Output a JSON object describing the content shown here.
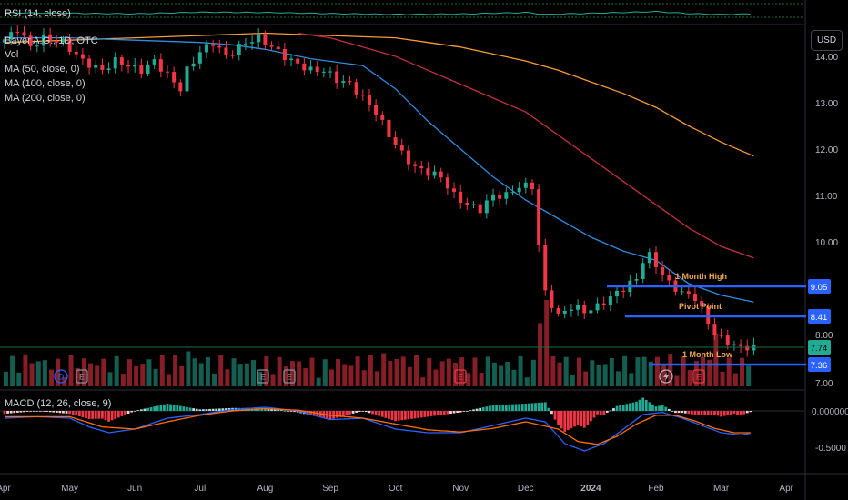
{
  "chart_data": {
    "type": "candlestick",
    "symbol_line": "Bayer A.G., 1D, OTC",
    "volume_label": "Vol",
    "indicators": {
      "rsi_label": "RSI (14, close)",
      "ma50_label": "MA (50, close, 0)",
      "ma100_label": "MA (100, close, 0)",
      "ma200_label": "MA (200, close, 0)",
      "macd_label": "MACD (12, 26, close, 9)"
    },
    "currency": "USD",
    "y_axis_ticks": [
      "14.00",
      "13.00",
      "12.00",
      "11.00",
      "10.00",
      "8.00",
      "7.00"
    ],
    "y_axis_values": [
      14,
      13,
      12,
      11,
      10,
      8,
      7
    ],
    "macd_axis_ticks": [
      "0.000000",
      "-0.5000"
    ],
    "x_axis_labels": [
      "Apr",
      "May",
      "Jun",
      "Jul",
      "Aug",
      "Sep",
      "Oct",
      "Nov",
      "Dec",
      "2024",
      "Feb",
      "Mar",
      "Apr"
    ],
    "levels": [
      {
        "name": "1 Month High",
        "value": "9.05",
        "color": "#2962ff",
        "label_color": "#f0a850"
      },
      {
        "name": "Pivot Point",
        "value": "8.41",
        "color": "#2962ff",
        "label_color": "#f0a850"
      },
      {
        "name": "1 Month Low",
        "value": "7.36",
        "color": "#2962ff",
        "label_color": "#f0a850"
      }
    ],
    "last_price": "7.74",
    "last_price_color": "#22ab94",
    "event_markers": [
      "D",
      "E",
      "E",
      "E",
      "E",
      "E"
    ],
    "colors": {
      "up": "#22ab94",
      "down": "#f23645",
      "ma50": "#2f8ce0",
      "ma100": "#c2313b",
      "ma200": "#f59b3a",
      "macd": "#2962ff",
      "signal": "#ff6d00"
    },
    "price_path": [
      [
        0.0,
        14.3
      ],
      [
        0.15,
        14.4
      ],
      [
        0.3,
        14.6
      ],
      [
        0.5,
        14.2
      ],
      [
        0.7,
        14.4
      ],
      [
        1.0,
        14.3
      ],
      [
        1.3,
        13.9
      ],
      [
        1.6,
        13.7
      ],
      [
        1.8,
        13.9
      ],
      [
        2.0,
        13.8
      ],
      [
        2.2,
        13.7
      ],
      [
        2.4,
        13.9
      ],
      [
        2.6,
        13.6
      ],
      [
        2.8,
        13.3
      ],
      [
        2.9,
        13.7
      ],
      [
        3.1,
        14.1
      ],
      [
        3.3,
        14.3
      ],
      [
        3.5,
        14.0
      ],
      [
        3.7,
        14.2
      ],
      [
        3.8,
        14.3
      ],
      [
        4.0,
        14.4
      ],
      [
        4.3,
        14.1
      ],
      [
        4.5,
        13.9
      ],
      [
        4.8,
        13.7
      ],
      [
        5.0,
        13.7
      ],
      [
        5.2,
        13.5
      ],
      [
        5.4,
        13.4
      ],
      [
        5.6,
        13.1
      ],
      [
        5.8,
        12.8
      ],
      [
        6.0,
        12.3
      ],
      [
        6.2,
        11.9
      ],
      [
        6.4,
        11.6
      ],
      [
        6.6,
        11.5
      ],
      [
        6.8,
        11.4
      ],
      [
        7.0,
        11.0
      ],
      [
        7.2,
        10.8
      ],
      [
        7.4,
        10.7
      ],
      [
        7.6,
        11.0
      ],
      [
        7.8,
        11.0
      ],
      [
        8.0,
        11.2
      ],
      [
        8.25,
        11.2
      ],
      [
        8.32,
        9.4
      ],
      [
        8.4,
        8.9
      ],
      [
        8.6,
        8.4
      ],
      [
        8.8,
        8.6
      ],
      [
        9.0,
        8.5
      ],
      [
        9.2,
        8.6
      ],
      [
        9.4,
        8.8
      ],
      [
        9.6,
        9.0
      ],
      [
        9.8,
        9.2
      ],
      [
        9.9,
        9.6
      ],
      [
        10.0,
        9.7
      ],
      [
        10.1,
        9.5
      ],
      [
        10.3,
        9.1
      ],
      [
        10.5,
        8.9
      ],
      [
        10.7,
        8.8
      ],
      [
        10.85,
        8.4
      ],
      [
        10.95,
        8.1
      ],
      [
        11.1,
        7.9
      ],
      [
        11.3,
        7.8
      ],
      [
        11.4,
        7.7
      ],
      [
        11.5,
        7.75
      ]
    ],
    "ma50_path": [
      [
        0.0,
        14.4
      ],
      [
        1.0,
        14.4
      ],
      [
        2.0,
        14.35
      ],
      [
        3.0,
        14.3
      ],
      [
        3.5,
        14.25
      ],
      [
        4.0,
        14.15
      ],
      [
        4.7,
        13.95
      ],
      [
        5.5,
        13.8
      ],
      [
        6.0,
        13.3
      ],
      [
        6.5,
        12.6
      ],
      [
        7.0,
        12.0
      ],
      [
        7.5,
        11.4
      ],
      [
        8.0,
        10.9
      ],
      [
        8.5,
        10.5
      ],
      [
        9.0,
        10.1
      ],
      [
        9.5,
        9.8
      ],
      [
        10.0,
        9.6
      ],
      [
        10.5,
        9.1
      ],
      [
        11.0,
        8.85
      ],
      [
        11.5,
        8.7
      ]
    ],
    "ma100_path": [
      [
        4.5,
        14.5
      ],
      [
        5.0,
        14.4
      ],
      [
        5.5,
        14.2
      ],
      [
        6.0,
        14.0
      ],
      [
        6.5,
        13.7
      ],
      [
        7.0,
        13.4
      ],
      [
        7.5,
        13.1
      ],
      [
        8.0,
        12.8
      ],
      [
        8.5,
        12.3
      ],
      [
        9.0,
        11.8
      ],
      [
        9.5,
        11.3
      ],
      [
        10.0,
        10.8
      ],
      [
        10.5,
        10.3
      ],
      [
        11.0,
        9.9
      ],
      [
        11.5,
        9.65
      ]
    ],
    "ma200_path": [
      [
        0.0,
        14.3
      ],
      [
        1.0,
        14.35
      ],
      [
        2.0,
        14.4
      ],
      [
        3.0,
        14.45
      ],
      [
        4.0,
        14.5
      ],
      [
        5.0,
        14.45
      ],
      [
        6.0,
        14.4
      ],
      [
        6.5,
        14.3
      ],
      [
        7.0,
        14.2
      ],
      [
        7.5,
        14.05
      ],
      [
        8.0,
        13.9
      ],
      [
        8.5,
        13.7
      ],
      [
        9.0,
        13.45
      ],
      [
        9.5,
        13.2
      ],
      [
        10.0,
        12.9
      ],
      [
        10.5,
        12.5
      ],
      [
        11.0,
        12.15
      ],
      [
        11.5,
        11.85
      ]
    ],
    "macd_path": [
      [
        0.0,
        -0.1
      ],
      [
        0.5,
        -0.08
      ],
      [
        1.0,
        -0.1
      ],
      [
        1.3,
        -0.22
      ],
      [
        1.6,
        -0.3
      ],
      [
        2.0,
        -0.25
      ],
      [
        2.5,
        -0.1
      ],
      [
        3.0,
        -0.05
      ],
      [
        3.5,
        0.02
      ],
      [
        4.0,
        0.05
      ],
      [
        4.5,
        0.0
      ],
      [
        5.0,
        -0.12
      ],
      [
        5.5,
        -0.1
      ],
      [
        6.0,
        -0.25
      ],
      [
        6.5,
        -0.3
      ],
      [
        7.0,
        -0.3
      ],
      [
        7.5,
        -0.2
      ],
      [
        8.0,
        -0.1
      ],
      [
        8.3,
        -0.15
      ],
      [
        8.6,
        -0.45
      ],
      [
        8.9,
        -0.55
      ],
      [
        9.2,
        -0.45
      ],
      [
        9.5,
        -0.25
      ],
      [
        9.8,
        -0.05
      ],
      [
        10.1,
        -0.02
      ],
      [
        10.4,
        -0.1
      ],
      [
        10.7,
        -0.2
      ],
      [
        11.0,
        -0.3
      ],
      [
        11.3,
        -0.33
      ],
      [
        11.5,
        -0.3
      ]
    ],
    "signal_path": [
      [
        0.0,
        -0.08
      ],
      [
        0.5,
        -0.08
      ],
      [
        1.0,
        -0.08
      ],
      [
        1.5,
        -0.22
      ],
      [
        2.0,
        -0.25
      ],
      [
        2.5,
        -0.15
      ],
      [
        3.0,
        -0.06
      ],
      [
        3.5,
        0.0
      ],
      [
        4.0,
        0.03
      ],
      [
        4.5,
        0.01
      ],
      [
        5.0,
        -0.06
      ],
      [
        5.5,
        -0.1
      ],
      [
        6.0,
        -0.18
      ],
      [
        6.5,
        -0.26
      ],
      [
        7.0,
        -0.29
      ],
      [
        7.5,
        -0.24
      ],
      [
        8.0,
        -0.15
      ],
      [
        8.5,
        -0.25
      ],
      [
        8.8,
        -0.42
      ],
      [
        9.1,
        -0.46
      ],
      [
        9.4,
        -0.35
      ],
      [
        9.7,
        -0.18
      ],
      [
        10.0,
        -0.06
      ],
      [
        10.3,
        -0.06
      ],
      [
        10.6,
        -0.14
      ],
      [
        10.9,
        -0.24
      ],
      [
        11.2,
        -0.3
      ],
      [
        11.5,
        -0.3
      ]
    ],
    "rsi_path": [
      [
        0.0,
        50
      ],
      [
        1.0,
        45
      ],
      [
        2.0,
        40
      ],
      [
        3.0,
        55
      ],
      [
        4.0,
        52
      ],
      [
        5.0,
        42
      ],
      [
        6.0,
        35
      ],
      [
        7.0,
        38
      ],
      [
        8.0,
        52
      ],
      [
        8.3,
        35
      ],
      [
        9.0,
        45
      ],
      [
        10.0,
        60
      ],
      [
        10.5,
        42
      ],
      [
        11.0,
        34
      ],
      [
        11.5,
        40
      ]
    ]
  }
}
